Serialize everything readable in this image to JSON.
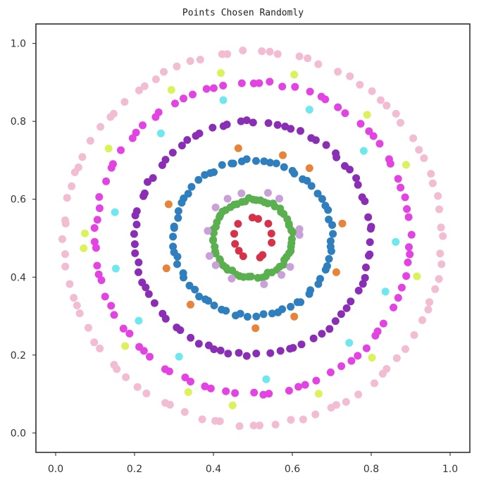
{
  "chart_data": {
    "type": "scatter",
    "title": "Points Chosen Randomly",
    "xlabel": "",
    "ylabel": "",
    "xlim": [
      -0.05,
      1.05
    ],
    "ylim": [
      -0.05,
      1.05
    ],
    "xticks": [
      "0.0",
      "0.2",
      "0.4",
      "0.6",
      "0.8",
      "1.0"
    ],
    "yticks": [
      "0.0",
      "0.2",
      "0.4",
      "0.6",
      "0.8",
      "1.0"
    ],
    "grid": false,
    "center": [
      0.5,
      0.5
    ],
    "rings": [
      {
        "radius": 0.05,
        "color": "#d6324a",
        "points": 12,
        "start_deg": 10
      },
      {
        "radius": 0.1,
        "color": "#5aaf4f",
        "points": 60,
        "start_deg": 0
      },
      {
        "radius": 0.12,
        "color": "#c9a0d8",
        "points": 14,
        "start_deg": 20
      },
      {
        "radius": 0.2,
        "color": "#2f7fbf",
        "points": 70,
        "start_deg": 5
      },
      {
        "radius": 0.23,
        "color": "#e8843a",
        "points": 10,
        "start_deg": 40
      },
      {
        "radius": 0.3,
        "color": "#8a2fb5",
        "points": 80,
        "start_deg": 3
      },
      {
        "radius": 0.36,
        "color": "#6ee8ee",
        "points": 12,
        "start_deg": 70
      },
      {
        "radius": 0.4,
        "color": "#e243e2",
        "points": 85,
        "start_deg": 2
      },
      {
        "radius": 0.43,
        "color": "#dcf25a",
        "points": 14,
        "start_deg": 15
      },
      {
        "radius": 0.48,
        "color": "#f2bcd2",
        "points": 90,
        "start_deg": 1
      }
    ]
  }
}
